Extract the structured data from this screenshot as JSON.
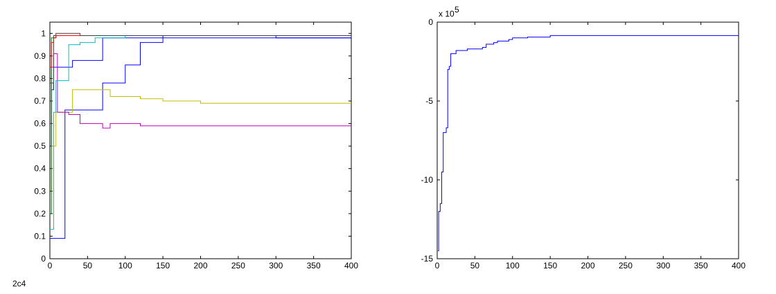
{
  "chart_data": [
    {
      "type": "line",
      "step": true,
      "annotation": "2c4",
      "x": [
        0,
        2,
        5,
        8,
        10,
        12,
        15,
        20,
        25,
        30,
        40,
        50,
        60,
        70,
        80,
        100,
        120,
        150,
        200,
        250,
        300,
        400
      ],
      "xlim": [
        0,
        400
      ],
      "xticks": [
        0,
        50,
        100,
        150,
        200,
        250,
        300,
        350,
        400
      ],
      "ylim": [
        0,
        1.05
      ],
      "yticks": [
        0,
        0.1,
        0.2,
        0.3,
        0.4,
        0.5,
        0.6,
        0.7,
        0.8,
        0.9,
        1
      ],
      "grid": false,
      "series": [
        {
          "color": "#0000ff",
          "values": [
            0.09,
            0.09,
            0.09,
            0.09,
            0.09,
            0.09,
            0.09,
            0.66,
            0.66,
            0.66,
            0.66,
            0.66,
            0.66,
            0.78,
            0.78,
            0.86,
            0.96,
            0.99,
            0.99,
            0.99,
            0.98,
            0.98
          ]
        },
        {
          "color": "#0000ff",
          "values": [
            0.5,
            0.75,
            0.85,
            0.85,
            0.85,
            0.85,
            0.85,
            0.85,
            0.85,
            0.88,
            0.88,
            0.88,
            0.88,
            0.98,
            0.98,
            0.98,
            0.98,
            0.98,
            0.98,
            0.98,
            0.98,
            0.98
          ]
        },
        {
          "color": "#bfbf00",
          "values": [
            0.31,
            0.5,
            0.5,
            0.65,
            0.65,
            0.65,
            0.65,
            0.65,
            0.65,
            0.75,
            0.75,
            0.75,
            0.75,
            0.75,
            0.72,
            0.72,
            0.71,
            0.7,
            0.69,
            0.69,
            0.69,
            0.69
          ]
        },
        {
          "color": "#bf00bf",
          "values": [
            0.6,
            0.85,
            0.91,
            0.91,
            0.65,
            0.65,
            0.65,
            0.65,
            0.64,
            0.64,
            0.6,
            0.6,
            0.6,
            0.58,
            0.6,
            0.6,
            0.59,
            0.59,
            0.59,
            0.59,
            0.59,
            0.59
          ]
        },
        {
          "color": "#00bfbf",
          "values": [
            0.13,
            0.13,
            0.65,
            0.79,
            0.79,
            0.79,
            0.79,
            0.79,
            0.95,
            0.95,
            0.96,
            0.96,
            0.98,
            0.98,
            0.98,
            0.99,
            0.99,
            0.99,
            0.99,
            0.99,
            0.99,
            0.99
          ]
        },
        {
          "color": "#008000",
          "values": [
            0.2,
            0.98,
            0.98,
            0.99,
            0.99,
            0.99,
            0.99,
            0.99,
            0.99,
            0.99,
            0.99,
            0.99,
            0.99,
            0.99,
            0.99,
            0.99,
            0.99,
            0.99,
            0.99,
            0.99,
            0.99,
            0.99
          ]
        },
        {
          "color": "#ff0000",
          "values": [
            0.85,
            0.96,
            0.98,
            0.99,
            0.99,
            0.99,
            0.99,
            0.99,
            0.99,
            0.99,
            0.99,
            0.99,
            0.99,
            0.99,
            0.99,
            0.99,
            0.99,
            0.99,
            0.99,
            0.99,
            0.99,
            0.99
          ]
        },
        {
          "color": "#404040",
          "values": [
            0.78,
            0.78,
            0.99,
            1,
            1,
            1,
            1,
            1,
            1,
            1,
            0.99,
            0.99,
            0.99,
            0.99,
            0.99,
            0.99,
            0.99,
            0.99,
            0.99,
            0.99,
            0.99,
            0.99
          ]
        }
      ]
    },
    {
      "type": "line",
      "step": true,
      "y_scale_label": "x 10",
      "y_scale_exponent": "5",
      "x": [
        0,
        1,
        2,
        4,
        6,
        8,
        12,
        14,
        16,
        18,
        25,
        40,
        60,
        65,
        75,
        80,
        95,
        100,
        120,
        150,
        400
      ],
      "xlim": [
        0,
        400
      ],
      "xticks": [
        0,
        50,
        100,
        150,
        200,
        250,
        300,
        350,
        400
      ],
      "ylim": [
        -15,
        0
      ],
      "yticks": [
        -15,
        -10,
        -5,
        0
      ],
      "grid": false,
      "series": [
        {
          "color": "#0000ff",
          "values": [
            null,
            -14.5,
            -12,
            -11.5,
            -9.5,
            -7,
            -6.7,
            -3,
            -2.8,
            -2,
            -1.8,
            -1.7,
            -1.6,
            -1.4,
            -1.3,
            -1.2,
            -1.1,
            -1,
            -0.95,
            -0.85,
            -0.85
          ]
        }
      ]
    }
  ]
}
